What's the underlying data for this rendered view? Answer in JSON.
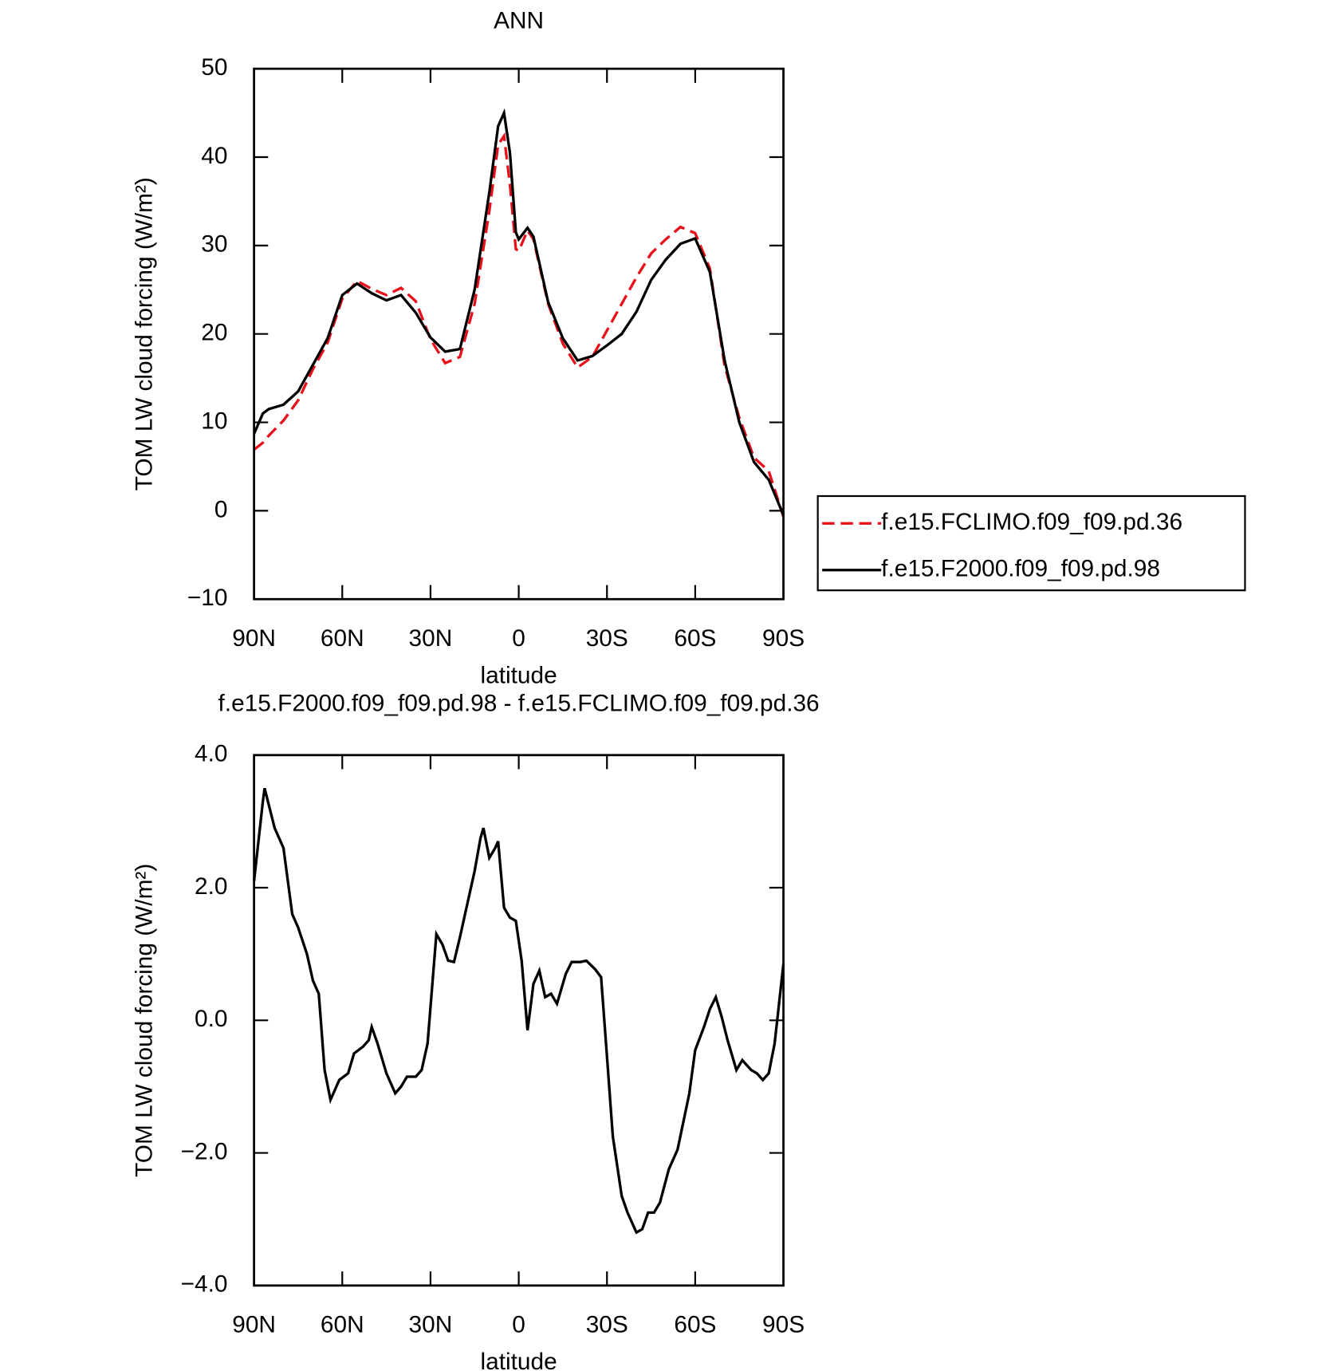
{
  "chart_data": [
    {
      "type": "line",
      "title": "ANN",
      "x_label": "latitude",
      "y_label": "TOM LW cloud forcing (W/m²)",
      "x": [
        90,
        87,
        85,
        80,
        75,
        70,
        65,
        60,
        55,
        50,
        45,
        40,
        35,
        30,
        25,
        20,
        15,
        10,
        7,
        5,
        3,
        1,
        0,
        -3,
        -5,
        -10,
        -15,
        -20,
        -25,
        -30,
        -35,
        -40,
        -45,
        -50,
        -55,
        -60,
        -65,
        -70,
        -75,
        -80,
        -85,
        -90
      ],
      "series": [
        {
          "name": "f.e15.FCLIMO.f09_f09.pd.36",
          "color": "#e8101a",
          "line_style": "dashed",
          "values": [
            6.9,
            7.7,
            8.5,
            10.2,
            12.5,
            16,
            19,
            24,
            26,
            25.1,
            24.4,
            25.2,
            23.7,
            19.4,
            16.7,
            17.4,
            23.4,
            33.9,
            41.4,
            42.4,
            36.9,
            29.6,
            29.4,
            31.7,
            30.7,
            23.4,
            18.9,
            16.2,
            17.4,
            20.4,
            23.4,
            26.4,
            29.1,
            30.7,
            32.1,
            31.4,
            27.4,
            16.4,
            10.5,
            6,
            4.5,
            -0.7
          ]
        },
        {
          "name": "f.e15.F2000.f09_f09.pd.98",
          "color": "#000000",
          "line_style": "solid",
          "values": [
            8.7,
            11,
            11.5,
            12,
            13.5,
            16.5,
            19.5,
            24.4,
            25.7,
            24.6,
            23.8,
            24.4,
            22.4,
            19.6,
            18,
            18.3,
            25,
            36,
            43.5,
            45,
            40.5,
            31.5,
            30.7,
            32,
            31,
            23.6,
            19.5,
            17,
            17.5,
            18.7,
            20,
            22.5,
            26.1,
            28.4,
            30.2,
            30.8,
            27,
            17,
            10,
            5.5,
            3.5,
            -0.5
          ]
        }
      ],
      "xlim": [
        90,
        -90
      ],
      "xticks": [
        {
          "value": 90,
          "label": "90N"
        },
        {
          "value": 60,
          "label": "60N"
        },
        {
          "value": 30,
          "label": "30N"
        },
        0,
        {
          "value": -30,
          "label": "30S"
        },
        {
          "value": -60,
          "label": "60S"
        },
        {
          "value": -90,
          "label": "90S"
        }
      ],
      "ylim": [
        -10,
        50
      ],
      "yticks": [
        {
          "value": -10,
          "label": "−10"
        },
        0,
        10,
        20,
        30,
        40,
        50
      ],
      "legend": "right"
    },
    {
      "type": "line",
      "title": "f.e15.F2000.f09_f09.pd.98 - f.e15.FCLIMO.f09_f09.pd.36",
      "x_label": "latitude",
      "y_label": "TOM LW cloud forcing (W/m²)",
      "x": [
        90,
        87,
        86.4,
        83,
        80,
        77,
        75,
        72,
        70,
        68,
        66,
        64,
        61,
        58,
        56,
        53,
        51,
        50,
        48,
        45,
        42,
        40,
        38,
        35,
        33,
        31,
        28,
        26,
        24,
        22,
        20,
        17,
        15,
        13,
        12,
        10,
        8,
        7,
        5,
        3,
        1,
        -1,
        -3,
        -5,
        -7,
        -9,
        -11,
        -13,
        -16,
        -18,
        -21,
        -23,
        -26,
        -28,
        -30,
        -32,
        -35,
        -37,
        -40,
        -42,
        -44,
        -46,
        -48,
        -51,
        -54,
        -58,
        -60,
        -63,
        -65,
        -67,
        -69,
        -71,
        -74,
        -76,
        -79,
        -81,
        -83,
        -85,
        -87,
        -90
      ],
      "series": [
        {
          "name": "f.e15.F2000.f09_f09.pd.98 - f.e15.FCLIMO.f09_f09.pd.36",
          "color": "#000000",
          "line_style": "solid",
          "values": [
            2.1,
            3.3,
            3.5,
            2.9,
            2.6,
            1.6,
            1.4,
            1.0,
            0.6,
            0.4,
            -0.75,
            -1.2,
            -0.9,
            -0.8,
            -0.5,
            -0.4,
            -0.3,
            -0.1,
            -0.35,
            -0.8,
            -1.1,
            -1.0,
            -0.85,
            -0.85,
            -0.75,
            -0.35,
            1.3,
            1.15,
            0.9,
            0.88,
            1.25,
            1.85,
            2.25,
            2.75,
            2.9,
            2.45,
            2.6,
            2.7,
            1.7,
            1.55,
            1.5,
            0.9,
            -0.15,
            0.55,
            0.75,
            0.35,
            0.4,
            0.25,
            0.7,
            0.88,
            0.88,
            0.9,
            0.77,
            0.65,
            -0.55,
            -1.75,
            -2.65,
            -2.9,
            -3.2,
            -3.15,
            -2.9,
            -2.9,
            -2.75,
            -2.25,
            -1.95,
            -1.1,
            -0.45,
            -0.1,
            0.17,
            0.35,
            0.05,
            -0.3,
            -0.75,
            -0.6,
            -0.75,
            -0.8,
            -0.9,
            -0.8,
            -0.35,
            0.85
          ]
        }
      ],
      "xlim": [
        90,
        -90
      ],
      "xticks": [
        {
          "value": 90,
          "label": "90N"
        },
        {
          "value": 60,
          "label": "60N"
        },
        {
          "value": 30,
          "label": "30N"
        },
        0,
        {
          "value": -30,
          "label": "30S"
        },
        {
          "value": -60,
          "label": "60S"
        },
        {
          "value": -90,
          "label": "90S"
        }
      ],
      "ylim": [
        -4,
        4
      ],
      "yticks": [
        {
          "value": -4,
          "label": "−4.0"
        },
        {
          "value": -2,
          "label": "−2.0"
        },
        {
          "value": 0,
          "label": "0.0"
        },
        {
          "value": 2,
          "label": "2.0"
        },
        {
          "value": 4,
          "label": "4.0"
        }
      ]
    }
  ]
}
